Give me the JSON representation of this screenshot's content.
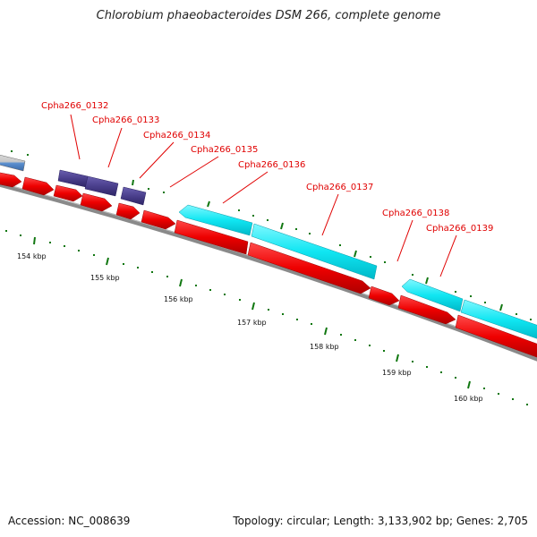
{
  "header": {
    "title": "Chlorobium phaeobacteroides DSM 266, complete genome"
  },
  "footer": {
    "accession": "Accession: NC_008639",
    "summary": "Topology: circular; Length: 3,133,902 bp; Genes: 2,705"
  },
  "colors": {
    "forward_cds": "#ff0000",
    "reverse_cds": "#00e5f0",
    "other_feature": "#4b3f8c",
    "backbone": "#888888",
    "label": "#e00000",
    "tick": "#117711"
  },
  "scale": {
    "ticks": [
      {
        "position_kbp": 154,
        "label": "154 kbp"
      },
      {
        "position_kbp": 155,
        "label": "155 kbp"
      },
      {
        "position_kbp": 156,
        "label": "156 kbp"
      },
      {
        "position_kbp": 157,
        "label": "157 kbp"
      },
      {
        "position_kbp": 158,
        "label": "158 kbp"
      },
      {
        "position_kbp": 159,
        "label": "159 kbp"
      },
      {
        "position_kbp": 160,
        "label": "160 kbp"
      }
    ]
  },
  "gene_labels": [
    "Cpha266_0132",
    "Cpha266_0133",
    "Cpha266_0134",
    "Cpha266_0135",
    "Cpha266_0136",
    "Cpha266_0137",
    "Cpha266_0138",
    "Cpha266_0139"
  ]
}
